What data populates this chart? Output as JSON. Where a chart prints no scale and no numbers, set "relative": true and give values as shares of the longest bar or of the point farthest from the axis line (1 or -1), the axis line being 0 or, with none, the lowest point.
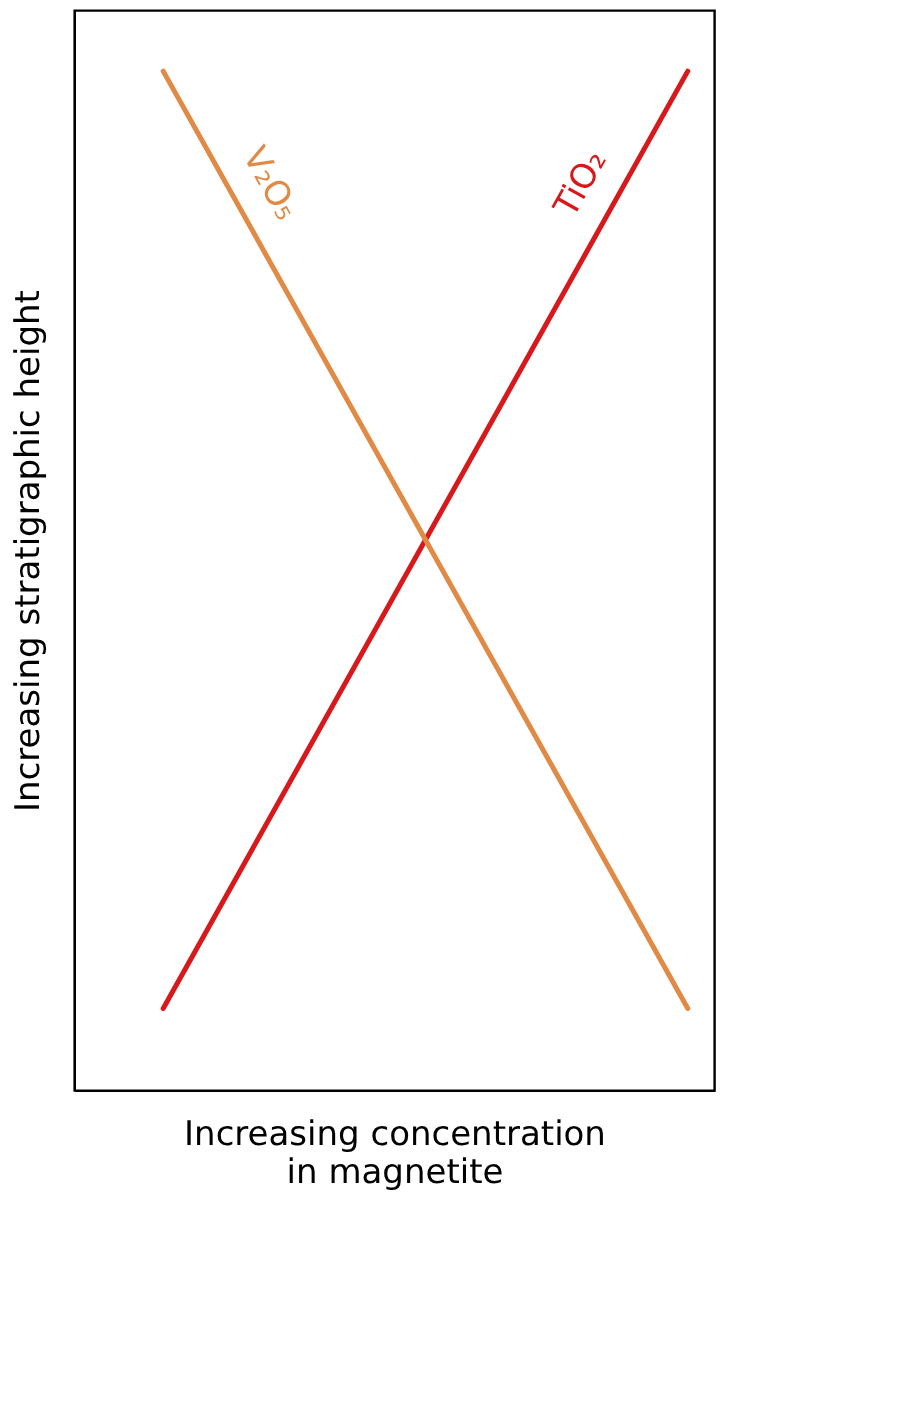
{
  "chart_data": {
    "type": "line",
    "relative": true,
    "xlabel": "Increasing concentration in magnetite",
    "ylabel": "Increasing stratigraphic height",
    "categories": [
      null,
      null
    ],
    "legend": false,
    "grid": false,
    "series": [
      {
        "name": "TiO₂",
        "color": "#d7191c",
        "values": [
          0.08,
          1
        ]
      },
      {
        "name": "V₂O₅",
        "color": "#e08a45",
        "values": [
          1,
          0.08
        ]
      }
    ]
  }
}
